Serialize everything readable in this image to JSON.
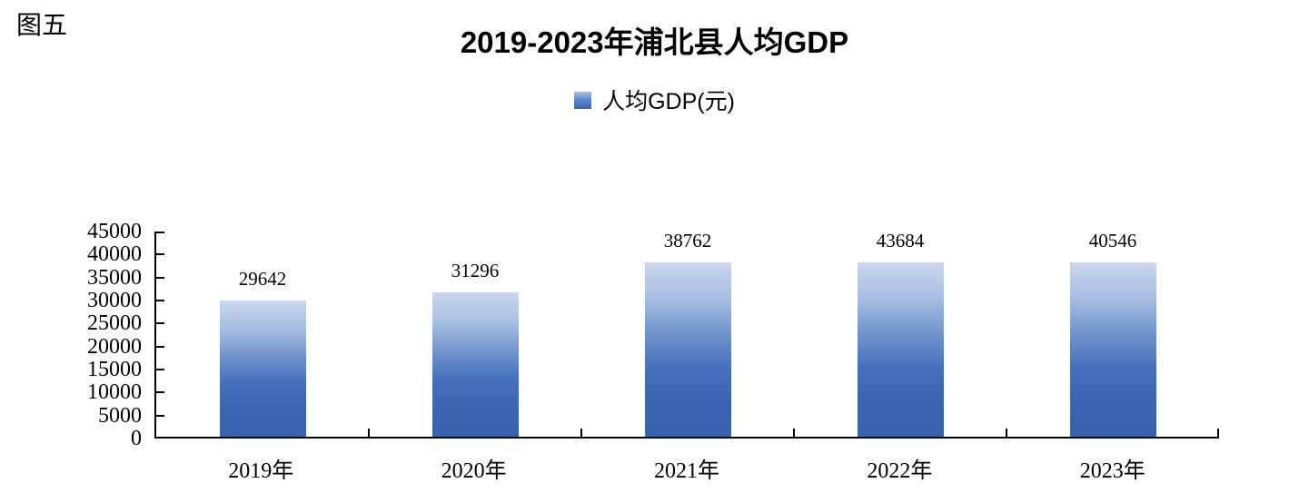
{
  "figure_label": "图五",
  "title": "2019-2023年浦北县人均GDP",
  "legend": {
    "label": "人均GDP(元)"
  },
  "colors": {
    "bar_gradient_top": "#cad7ee",
    "bar_gradient_bottom": "#3a65b0",
    "axis": "#000000",
    "text": "#000000",
    "background": "#ffffff"
  },
  "chart_data": {
    "type": "bar",
    "title": "2019-2023年浦北县人均GDP",
    "categories": [
      "2019年",
      "2020年",
      "2021年",
      "2022年",
      "2023年"
    ],
    "series": [
      {
        "name": "人均GDP(元)",
        "values": [
          29642,
          31296,
          38762,
          43684,
          40546
        ]
      }
    ],
    "data_labels": [
      29642,
      31296,
      38762,
      43684,
      40546
    ],
    "xlabel": "",
    "ylabel": "",
    "ylim": [
      0,
      45000
    ],
    "y_ticks": [
      0,
      5000,
      10000,
      15000,
      20000,
      25000,
      30000,
      35000,
      40000,
      45000
    ],
    "grid": false,
    "legend_position": "top"
  }
}
